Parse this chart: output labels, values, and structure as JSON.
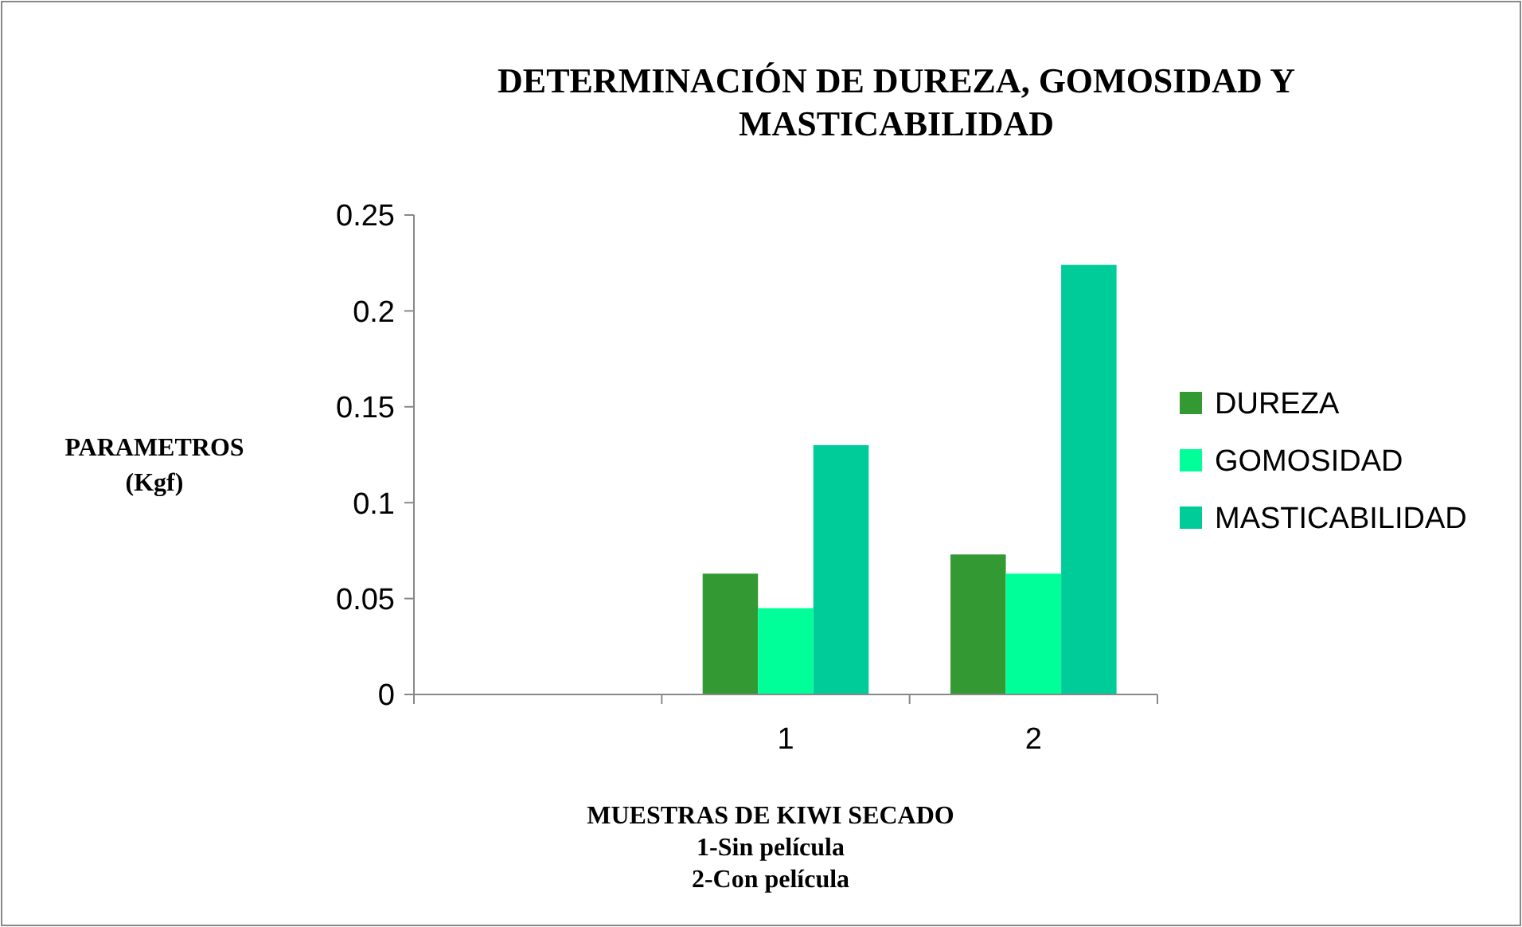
{
  "chart_data": {
    "type": "bar",
    "title": "DETERMINACIÓN DE DUREZA, GOMOSIDAD Y\nMASTICABILIDAD",
    "xlabel": "MUESTRAS DE KIWI SECADO\n1-Sin película\n2-Con película",
    "ylabel": "PARAMETROS\n(Kgf)",
    "categories": [
      null,
      "1",
      "2"
    ],
    "series": [
      {
        "name": "DUREZA",
        "color": "#339933",
        "values": [
          null,
          0.063,
          0.073
        ]
      },
      {
        "name": "GOMOSIDAD",
        "color": "#00ff99",
        "values": [
          null,
          0.045,
          0.063
        ]
      },
      {
        "name": "MASTICABILIDAD",
        "color": "#00cc99",
        "values": [
          null,
          0.13,
          0.224
        ]
      }
    ],
    "ylim": [
      0,
      0.25
    ],
    "yticks": [
      0,
      0.05,
      0.1,
      0.15,
      0.2,
      0.25
    ],
    "grid": false,
    "legend": "right"
  }
}
